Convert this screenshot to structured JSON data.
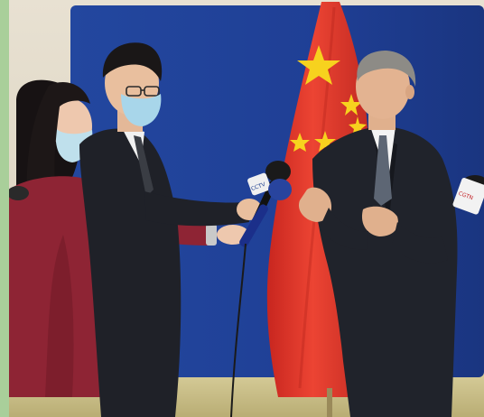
{
  "photo": {
    "colors": {
      "border": "#a9cf9a",
      "backdrop": "#1f3f9a",
      "flag_red": "#e23a2a",
      "flag_star": "#f7d21e",
      "suit_dark": "#20232b",
      "jacket_red": "#8e2434",
      "carpet": "#cbbf86"
    },
    "mic_flag_text": "CCTV",
    "mic_right_text": "CGTN"
  }
}
